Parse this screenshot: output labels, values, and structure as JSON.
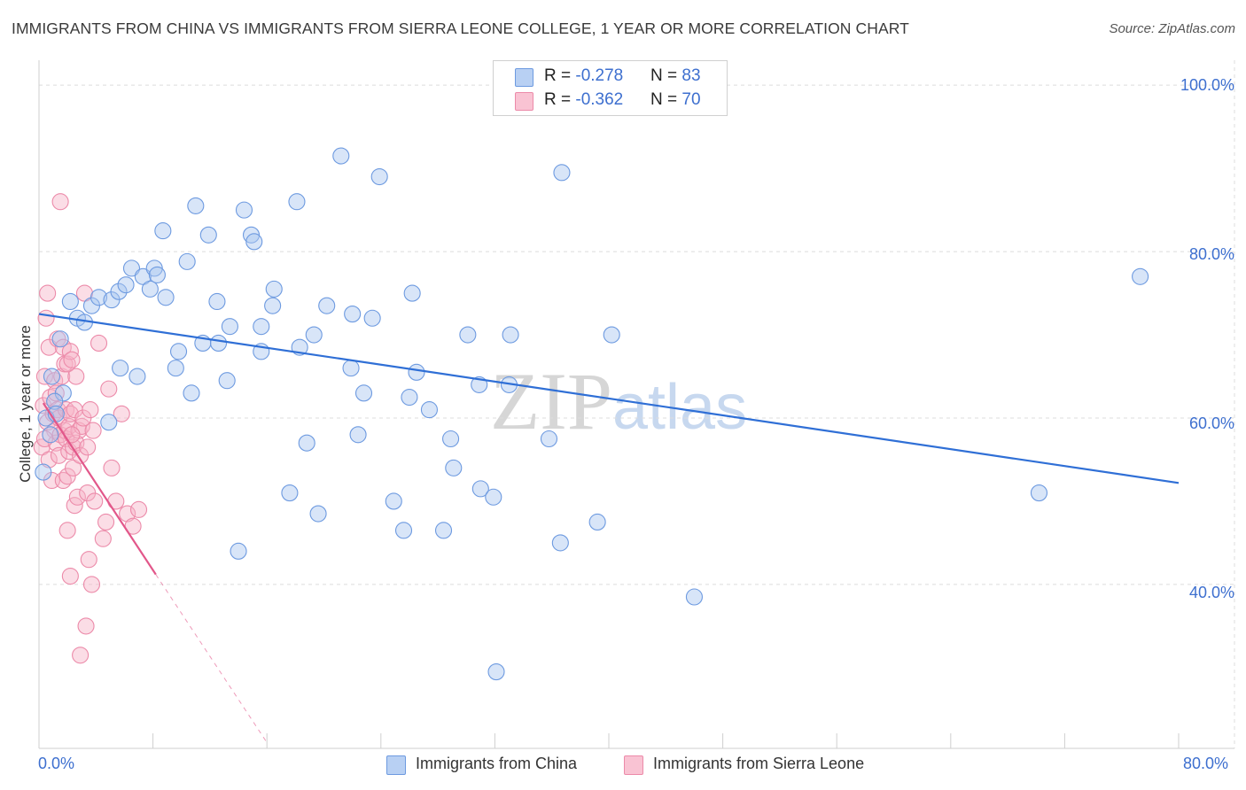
{
  "header": {
    "title": "IMMIGRANTS FROM CHINA VS IMMIGRANTS FROM SIERRA LEONE COLLEGE, 1 YEAR OR MORE CORRELATION CHART",
    "source": "Source: ZipAtlas.com"
  },
  "legend": {
    "china": {
      "r_label": "R = ",
      "r_value": "-0.278",
      "n_label": "N = ",
      "n_value": "83"
    },
    "sierra": {
      "r_label": "R = ",
      "r_value": "-0.362",
      "n_label": "N = ",
      "n_value": "70"
    }
  },
  "bottom_legend": {
    "china": "Immigrants from China",
    "sierra": "Immigrants from Sierra Leone"
  },
  "watermark": {
    "zip": "ZIP",
    "atlas": "atlas"
  },
  "colors": {
    "china_fill": "#a9c6f0",
    "china_stroke": "#6d9ae0",
    "china_line": "#2f6fd6",
    "sierra_fill": "#f6b3c8",
    "sierra_stroke": "#ec8aa9",
    "sierra_line": "#e2578a",
    "axis_text": "#3d6fcf",
    "grid": "#dcdcdc"
  },
  "chart_data": {
    "type": "scatter",
    "title": "IMMIGRANTS FROM CHINA VS IMMIGRANTS FROM SIERRA LEONE COLLEGE, 1 YEAR OR MORE CORRELATION CHART",
    "xlabel": "",
    "ylabel": "College, 1 year or more",
    "xlim": [
      0,
      80
    ],
    "ylim": [
      20.3,
      103
    ],
    "x_tick_labels": [
      "0.0%",
      "80.0%"
    ],
    "y_ticks": [
      40,
      60,
      80,
      100
    ],
    "y_tick_labels": [
      "40.0%",
      "60.0%",
      "80.0%",
      "100.0%"
    ],
    "grid": true,
    "series": [
      {
        "name": "Immigrants from China",
        "r": -0.278,
        "n": 83,
        "trend": {
          "x": [
            0,
            80
          ],
          "y": [
            72.5,
            52.2
          ]
        },
        "points": [
          [
            0.3,
            53.5
          ],
          [
            0.5,
            60
          ],
          [
            0.9,
            65
          ],
          [
            1.5,
            69.5
          ],
          [
            1.7,
            63
          ],
          [
            2.2,
            74
          ],
          [
            2.7,
            72
          ],
          [
            3.2,
            71.5
          ],
          [
            3.7,
            73.5
          ],
          [
            4.2,
            74.5
          ],
          [
            4.9,
            59.5
          ],
          [
            5.1,
            74.2
          ],
          [
            5.6,
            75.2
          ],
          [
            5.7,
            66
          ],
          [
            6.1,
            76
          ],
          [
            6.5,
            78
          ],
          [
            6.9,
            65
          ],
          [
            7.3,
            77
          ],
          [
            7.8,
            75.5
          ],
          [
            8.1,
            78
          ],
          [
            8.3,
            77.2
          ],
          [
            8.7,
            82.5
          ],
          [
            8.9,
            74.5
          ],
          [
            9.6,
            66
          ],
          [
            9.8,
            68
          ],
          [
            10.4,
            78.8
          ],
          [
            10.7,
            63
          ],
          [
            11,
            85.5
          ],
          [
            11.5,
            69
          ],
          [
            11.9,
            82
          ],
          [
            12.5,
            74
          ],
          [
            12.6,
            69
          ],
          [
            13.2,
            64.5
          ],
          [
            13.4,
            71
          ],
          [
            14,
            44
          ],
          [
            14.4,
            85
          ],
          [
            14.9,
            82
          ],
          [
            15.1,
            81.2
          ],
          [
            15.6,
            68
          ],
          [
            15.6,
            71
          ],
          [
            16.4,
            73.5
          ],
          [
            16.5,
            75.5
          ],
          [
            17.6,
            51
          ],
          [
            18.1,
            86
          ],
          [
            18.3,
            68.5
          ],
          [
            18.8,
            57
          ],
          [
            19.3,
            70
          ],
          [
            19.6,
            48.5
          ],
          [
            20.2,
            73.5
          ],
          [
            21.2,
            91.5
          ],
          [
            21.9,
            66
          ],
          [
            22,
            72.5
          ],
          [
            22.4,
            58
          ],
          [
            22.8,
            63
          ],
          [
            23.4,
            72
          ],
          [
            23.9,
            89
          ],
          [
            24.9,
            50
          ],
          [
            25.6,
            46.5
          ],
          [
            26,
            62.5
          ],
          [
            26.2,
            75
          ],
          [
            26.5,
            65.5
          ],
          [
            27.4,
            61
          ],
          [
            28.4,
            46.5
          ],
          [
            28.9,
            57.5
          ],
          [
            29.1,
            54
          ],
          [
            30.1,
            70
          ],
          [
            30.9,
            64
          ],
          [
            31,
            51.5
          ],
          [
            31.9,
            50.5
          ],
          [
            32.1,
            29.5
          ],
          [
            33,
            64
          ],
          [
            33.1,
            70
          ],
          [
            35.8,
            57.5
          ],
          [
            36.6,
            45
          ],
          [
            36.7,
            89.5
          ],
          [
            39.2,
            47.5
          ],
          [
            40.2,
            70
          ],
          [
            46,
            38.5
          ],
          [
            70.2,
            51
          ],
          [
            77.3,
            77
          ],
          [
            1.1,
            62
          ],
          [
            1.2,
            60.5
          ],
          [
            0.8,
            58
          ]
        ]
      },
      {
        "name": "Immigrants from Sierra Leone",
        "r": -0.362,
        "n": 70,
        "trend": {
          "x": [
            0.3,
            8.2
          ],
          "y": [
            61.8,
            41.2
          ]
        },
        "trend_dashed": {
          "x": [
            8.2,
            16
          ],
          "y": [
            41.2,
            21
          ]
        },
        "points": [
          [
            0.2,
            56.5
          ],
          [
            0.3,
            61.5
          ],
          [
            0.4,
            65
          ],
          [
            0.5,
            72
          ],
          [
            0.6,
            59.5
          ],
          [
            0.6,
            75
          ],
          [
            0.7,
            68.5
          ],
          [
            0.7,
            55
          ],
          [
            0.8,
            62.5
          ],
          [
            0.9,
            52.5
          ],
          [
            1,
            60.5
          ],
          [
            1.1,
            58.5
          ],
          [
            1.1,
            64.5
          ],
          [
            1.2,
            57
          ],
          [
            1.3,
            69.5
          ],
          [
            1.3,
            61
          ],
          [
            1.4,
            60
          ],
          [
            1.4,
            55.5
          ],
          [
            1.5,
            86
          ],
          [
            1.5,
            58
          ],
          [
            1.6,
            65
          ],
          [
            1.7,
            68.5
          ],
          [
            1.7,
            52.5
          ],
          [
            1.8,
            66.5
          ],
          [
            1.8,
            58.5
          ],
          [
            1.9,
            61
          ],
          [
            1.9,
            57.5
          ],
          [
            2,
            46.5
          ],
          [
            2,
            53
          ],
          [
            2,
            66.5
          ],
          [
            2.1,
            56
          ],
          [
            2.1,
            59
          ],
          [
            2.2,
            60.5
          ],
          [
            2.2,
            41
          ],
          [
            2.2,
            68
          ],
          [
            2.3,
            67
          ],
          [
            2.4,
            54
          ],
          [
            2.4,
            56.5
          ],
          [
            2.5,
            61
          ],
          [
            2.5,
            49.5
          ],
          [
            2.6,
            57
          ],
          [
            2.6,
            65
          ],
          [
            2.7,
            50.5
          ],
          [
            2.8,
            58.5
          ],
          [
            2.9,
            55.5
          ],
          [
            2.9,
            31.5
          ],
          [
            3,
            59
          ],
          [
            3.1,
            60
          ],
          [
            3.2,
            75
          ],
          [
            3.3,
            35
          ],
          [
            3.4,
            56.5
          ],
          [
            3.4,
            51
          ],
          [
            3.5,
            43
          ],
          [
            3.6,
            61
          ],
          [
            3.7,
            40
          ],
          [
            3.8,
            58.5
          ],
          [
            3.9,
            50
          ],
          [
            4.2,
            69
          ],
          [
            4.5,
            45.5
          ],
          [
            4.7,
            47.5
          ],
          [
            4.9,
            63.5
          ],
          [
            5.1,
            54
          ],
          [
            5.4,
            50
          ],
          [
            5.8,
            60.5
          ],
          [
            6.2,
            48.5
          ],
          [
            6.6,
            47
          ],
          [
            7,
            49
          ],
          [
            0.4,
            57.5
          ],
          [
            1.2,
            63
          ],
          [
            2.3,
            58
          ]
        ]
      }
    ]
  }
}
